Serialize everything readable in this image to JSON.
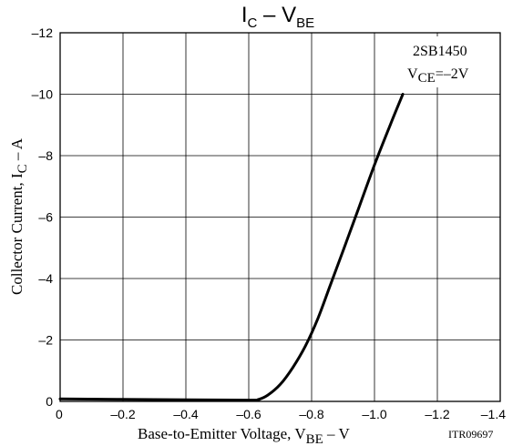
{
  "chart_data": {
    "type": "line",
    "title": {
      "main": "I",
      "sub1": "C",
      "dash": " – ",
      "main2": "V",
      "sub2": "BE"
    },
    "xlabel": {
      "pre": "Base-to-Emitter Voltage, V",
      "sub": "BE",
      "post": " – V"
    },
    "ylabel": {
      "pre": "Collector Current, I",
      "sub": "C",
      "post": " – A"
    },
    "xlim": [
      0,
      -1.4
    ],
    "ylim": [
      0,
      -12
    ],
    "x_ticks": [
      0,
      -0.2,
      -0.4,
      -0.6,
      -0.8,
      -1.0,
      -1.2,
      -1.4
    ],
    "x_tick_labels": [
      "0",
      "–0.2",
      "–0.4",
      "–0.6",
      "–0.8",
      "–1.0",
      "–1.2",
      "–1.4"
    ],
    "y_ticks": [
      0,
      -2,
      -4,
      -6,
      -8,
      -10,
      -12
    ],
    "y_tick_labels": [
      "0",
      "–2",
      "–4",
      "–6",
      "–8",
      "–10",
      "–12"
    ],
    "grid": true,
    "annotations": {
      "part_number": "2SB1450",
      "condition": {
        "pre": "V",
        "sub": "CE",
        "post": "=–2V"
      },
      "figure_code": "ITR09697"
    },
    "series": [
      {
        "x": [
          0,
          -0.3,
          -0.6,
          -0.63,
          -0.66,
          -0.7,
          -0.74,
          -0.78,
          -0.82,
          -0.86,
          -0.9,
          -0.95,
          -1.0,
          -1.05,
          -1.09
        ],
        "y": [
          -0.08,
          -0.06,
          -0.04,
          -0.06,
          -0.2,
          -0.55,
          -1.1,
          -1.8,
          -2.7,
          -3.8,
          -4.9,
          -6.3,
          -7.7,
          -9.0,
          -10.0
        ]
      }
    ]
  }
}
